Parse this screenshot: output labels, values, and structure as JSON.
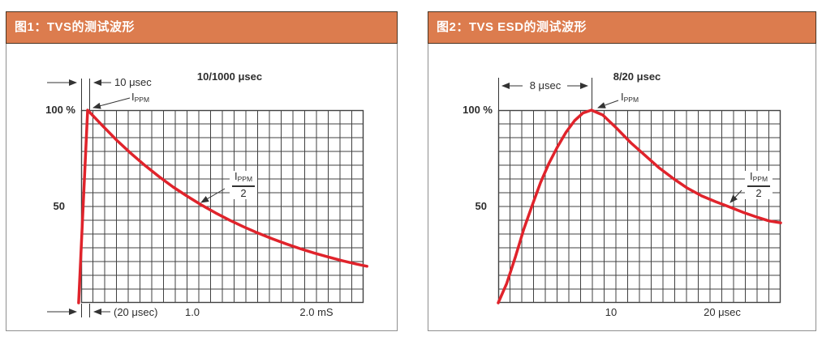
{
  "colors": {
    "header_bg": "#dc7c4e",
    "header_border": "#4a3423",
    "panel_border": "#8f8f8f",
    "grid": "#414141",
    "curve": "#e0232b",
    "text": "#2d2d2d"
  },
  "chart_data": [
    {
      "type": "line",
      "header": "图1：TVS的测试波形",
      "title": "10/1000 μsec",
      "y100_label": "100 %",
      "y50_label": "50",
      "rise_label": "10 μsec",
      "x_note": "(20 μsec)",
      "x_tick1": "1.0",
      "x_tick2": "2.0 mS",
      "ippm_main": "I",
      "ippm_sub": "PPM",
      "half_denominator": "2",
      "grid": {
        "cols": 24,
        "rows": 14
      },
      "y_axis": {
        "unit": "% of peak",
        "ticks": [
          100,
          50
        ]
      },
      "x_axis": {
        "unit": "mS",
        "tick_values": [
          1.0,
          2.0
        ]
      },
      "waveform": {
        "rise_time_usec": 10,
        "half_value_time_usec": 1000
      },
      "points_desc": "normalized [fraction of plot width, fraction of peak amplitude]",
      "points": [
        [
          -0.009,
          0.0
        ],
        [
          0.023,
          1.0
        ],
        [
          0.076,
          0.919
        ],
        [
          0.126,
          0.844
        ],
        [
          0.176,
          0.776
        ],
        [
          0.226,
          0.713
        ],
        [
          0.276,
          0.655
        ],
        [
          0.326,
          0.601
        ],
        [
          0.376,
          0.553
        ],
        [
          0.426,
          0.508
        ],
        [
          0.476,
          0.467
        ],
        [
          0.526,
          0.429
        ],
        [
          0.576,
          0.394
        ],
        [
          0.626,
          0.362
        ],
        [
          0.676,
          0.333
        ],
        [
          0.726,
          0.306
        ],
        [
          0.776,
          0.281
        ],
        [
          0.826,
          0.258
        ],
        [
          0.876,
          0.238
        ],
        [
          0.926,
          0.218
        ],
        [
          0.976,
          0.201
        ],
        [
          1.012,
          0.19
        ]
      ]
    },
    {
      "type": "line",
      "header": "图2：TVS ESD的测试波形",
      "title": "8/20 μsec",
      "y100_label": "100 %",
      "y50_label": "50",
      "rise_label": "8 μsec",
      "x_tick1": "10",
      "x_tick2": "20 μsec",
      "ippm_main": "I",
      "ippm_sub": "PPM",
      "half_denominator": "2",
      "grid": {
        "cols": 24,
        "rows": 14
      },
      "y_axis": {
        "unit": "% of peak",
        "ticks": [
          100,
          50
        ]
      },
      "x_axis": {
        "unit": "μsec",
        "tick_values": [
          10,
          20
        ]
      },
      "waveform": {
        "rise_time_usec": 8,
        "half_value_time_usec": 20
      },
      "points_desc": "normalized [fraction of plot width, fraction of peak amplitude]",
      "points": [
        [
          0.0,
          0.0
        ],
        [
          0.03,
          0.1
        ],
        [
          0.06,
          0.235
        ],
        [
          0.09,
          0.38
        ],
        [
          0.12,
          0.505
        ],
        [
          0.15,
          0.625
        ],
        [
          0.18,
          0.725
        ],
        [
          0.21,
          0.81
        ],
        [
          0.24,
          0.885
        ],
        [
          0.27,
          0.945
        ],
        [
          0.3,
          0.985
        ],
        [
          0.33,
          1.0
        ],
        [
          0.37,
          0.975
        ],
        [
          0.42,
          0.905
        ],
        [
          0.47,
          0.83
        ],
        [
          0.52,
          0.765
        ],
        [
          0.57,
          0.7
        ],
        [
          0.62,
          0.645
        ],
        [
          0.67,
          0.595
        ],
        [
          0.72,
          0.555
        ],
        [
          0.77,
          0.525
        ],
        [
          0.82,
          0.497
        ],
        [
          0.87,
          0.468
        ],
        [
          0.92,
          0.443
        ],
        [
          0.96,
          0.425
        ],
        [
          1.0,
          0.415
        ]
      ]
    }
  ]
}
